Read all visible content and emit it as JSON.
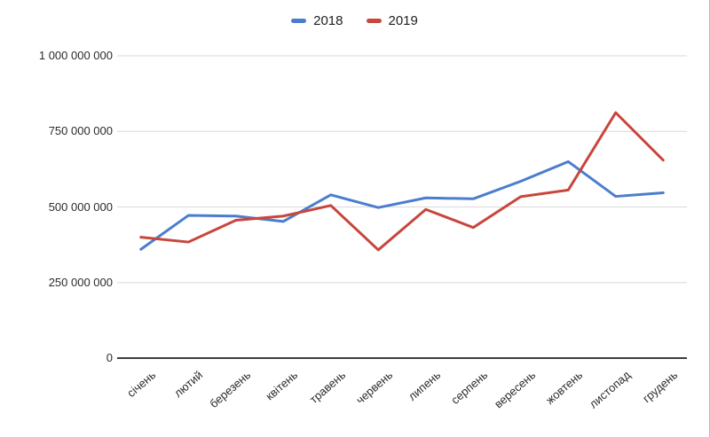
{
  "chart_data": {
    "type": "line",
    "title": "",
    "categories": [
      "січень",
      "лютий",
      "березень",
      "квітень",
      "травень",
      "червень",
      "липень",
      "серпень",
      "вересень",
      "жовтень",
      "листопад",
      "грудень"
    ],
    "series": [
      {
        "name": "2018",
        "color": "#4b7dce",
        "values": [
          360000000,
          472000000,
          470000000,
          452000000,
          540000000,
          498000000,
          530000000,
          527000000,
          585000000,
          650000000,
          535000000,
          547000000
        ]
      },
      {
        "name": "2019",
        "color": "#c8463c",
        "values": [
          400000000,
          384000000,
          456000000,
          470000000,
          505000000,
          358000000,
          492000000,
          432000000,
          534000000,
          556000000,
          812000000,
          655000000
        ]
      }
    ],
    "y_ticks": [
      {
        "value": 0,
        "label": "0"
      },
      {
        "value": 250000000,
        "label": "250 000 000"
      },
      {
        "value": 500000000,
        "label": "500 000 000"
      },
      {
        "value": 750000000,
        "label": "750 000 000"
      },
      {
        "value": 1000000000,
        "label": "1 000 000 000"
      }
    ],
    "ylim": [
      0,
      1000000000
    ],
    "grid": true,
    "legend_position": "top",
    "gridline_color": "#d9d9d9",
    "axis_color": "#3d3d3d",
    "label_color": "#2b2b2b"
  }
}
